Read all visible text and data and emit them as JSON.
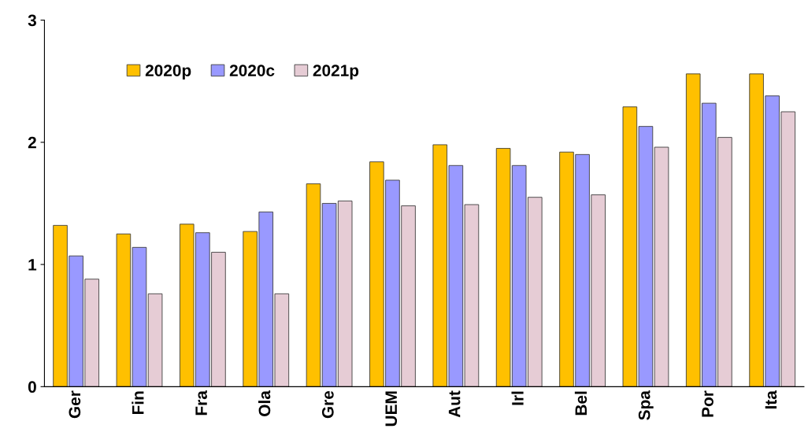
{
  "chart_data": {
    "type": "bar",
    "categories": [
      "Ger",
      "Fin",
      "Fra",
      "Ola",
      "Gre",
      "UEM",
      "Aut",
      "Irl",
      "Bel",
      "Spa",
      "Por",
      "Ita"
    ],
    "series": [
      {
        "name": "2020p",
        "color": "#ffc000",
        "values": [
          1.32,
          1.25,
          1.33,
          1.27,
          1.66,
          1.84,
          1.98,
          1.95,
          1.92,
          2.29,
          2.56,
          2.56
        ]
      },
      {
        "name": "2020c",
        "color": "#9999ff",
        "values": [
          1.07,
          1.14,
          1.26,
          1.43,
          1.5,
          1.69,
          1.81,
          1.81,
          1.9,
          2.13,
          2.32,
          2.38
        ]
      },
      {
        "name": "2021p",
        "color": "#e6ccd5",
        "values": [
          0.88,
          0.76,
          1.1,
          0.76,
          1.52,
          1.48,
          1.49,
          1.55,
          1.57,
          1.96,
          2.04,
          2.25
        ]
      }
    ],
    "ylim": [
      0,
      3
    ],
    "yticks": [
      0,
      1,
      2,
      3
    ],
    "grid": false,
    "legend": "top left"
  }
}
